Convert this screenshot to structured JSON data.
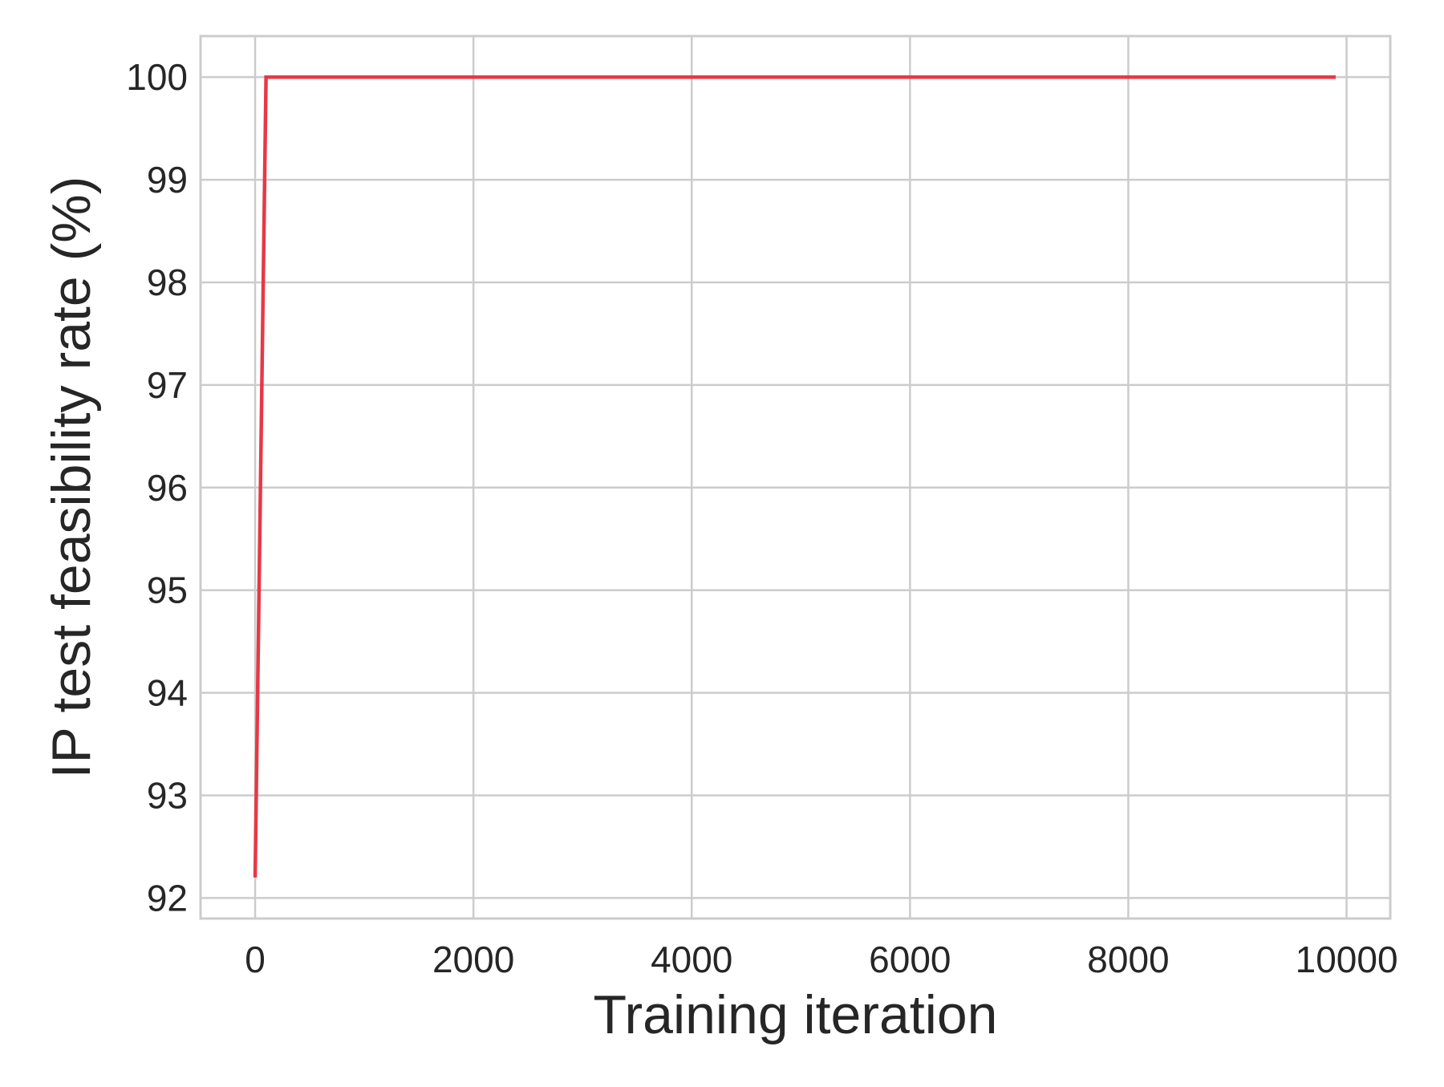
{
  "chart_data": {
    "type": "line",
    "title": "",
    "xlabel": "Training iteration",
    "ylabel": "IP test feasibility rate (%)",
    "xlim": [
      -500,
      10400
    ],
    "ylim": [
      91.8,
      100.4
    ],
    "xticks": [
      0,
      2000,
      4000,
      6000,
      8000,
      10000
    ],
    "xtick_labels": [
      "0",
      "2000",
      "4000",
      "6000",
      "8000",
      "10000"
    ],
    "yticks": [
      92,
      93,
      94,
      95,
      96,
      97,
      98,
      99,
      100
    ],
    "ytick_labels": [
      "92",
      "93",
      "94",
      "95",
      "96",
      "97",
      "98",
      "99",
      "100"
    ],
    "grid": true,
    "legend": "none",
    "series": [
      {
        "color": "#e63946",
        "x": [
          0,
          100,
          9900
        ],
        "y": [
          92.2,
          100,
          100
        ]
      }
    ]
  }
}
